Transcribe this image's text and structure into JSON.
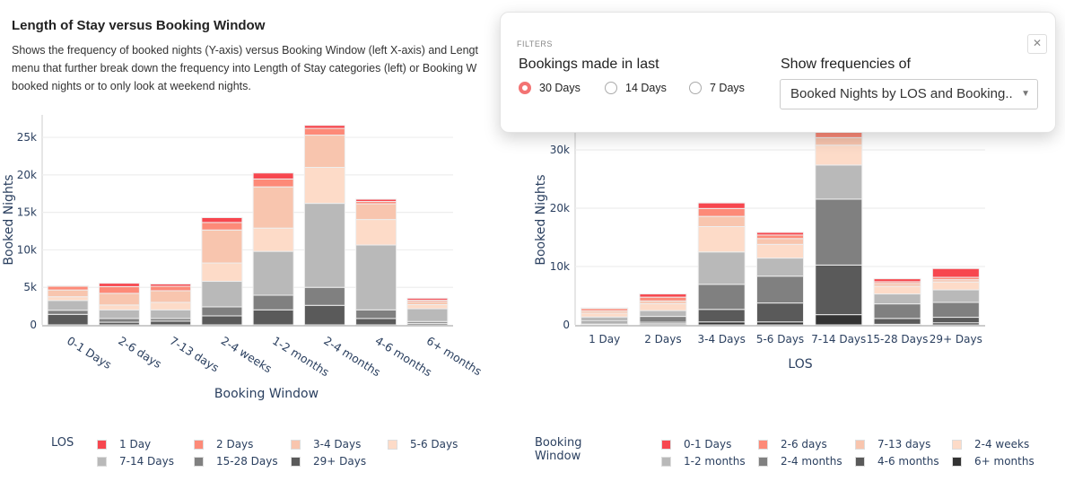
{
  "header": {
    "title": "Length of Stay versus Booking Window",
    "description_lines": [
      "Shows the frequency of booked nights (Y-axis) versus Booking Window (left X-axis) and Lengt",
      "menu that further break down the frequency into Length of Stay categories (left) or Booking W",
      "booked nights or to only look at weekend nights."
    ]
  },
  "filters": {
    "title": "FILTERS",
    "close_icon": "close-icon",
    "bookings_label": "Bookings made in last",
    "options": [
      "30 Days",
      "14 Days",
      "7 Days"
    ],
    "selected": "30 Days",
    "frequency_label": "Show frequencies of",
    "frequency_value": "Booked Nights by LOS and Booking..",
    "accent": "#f37373"
  },
  "chart_data": [
    {
      "type": "bar",
      "stacked": true,
      "title": "",
      "xlabel": "Booking Window",
      "ylabel": "Booked Nights",
      "ylim": [
        0,
        28000
      ],
      "yticks": [
        0,
        5000,
        10000,
        15000,
        20000,
        25000
      ],
      "ytick_labels": [
        "0",
        "5k",
        "10k",
        "15k",
        "20k",
        "25k"
      ],
      "grid": true,
      "legend_title": "LOS",
      "legend_position": "bottom",
      "categories": [
        "0-1 Days",
        "2-6 days",
        "7-13 days",
        "2-4 weeks",
        "1-2 months",
        "2-4 months",
        "4-6 months",
        "6+ months"
      ],
      "series": [
        {
          "name": "29+ Days",
          "color": "#5a5a5a",
          "values": [
            1400,
            350,
            500,
            1200,
            2000,
            2600,
            850,
            200
          ]
        },
        {
          "name": "15-28 Days",
          "color": "#808080",
          "values": [
            550,
            500,
            350,
            1200,
            1950,
            2400,
            1150,
            250
          ]
        },
        {
          "name": "7-14 Days",
          "color": "#b9b9b9",
          "values": [
            1300,
            1150,
            1150,
            3400,
            5850,
            11200,
            8650,
            1700
          ]
        },
        {
          "name": "5-6 Days",
          "color": "#fddbc8",
          "values": [
            500,
            650,
            1000,
            2450,
            3100,
            4800,
            3400,
            550
          ]
        },
        {
          "name": "3-4 Days",
          "color": "#f8c5ae",
          "values": [
            900,
            1550,
            1550,
            4400,
            5500,
            4300,
            2100,
            400
          ]
        },
        {
          "name": "2 Days",
          "color": "#fd8a78",
          "values": [
            500,
            900,
            600,
            1000,
            1050,
            900,
            300,
            200
          ]
        },
        {
          "name": "1 Day",
          "color": "#f7474f",
          "values": [
            50,
            450,
            300,
            650,
            800,
            400,
            300,
            250
          ]
        }
      ]
    },
    {
      "type": "bar",
      "stacked": true,
      "title": "",
      "xlabel": "LOS",
      "ylabel": "Booked Nights",
      "ylim": [
        0,
        36000
      ],
      "yticks": [
        0,
        10000,
        20000,
        30000
      ],
      "ytick_labels": [
        "0",
        "10k",
        "20k",
        "30k"
      ],
      "grid": true,
      "legend_title": "Booking Window",
      "legend_position": "bottom",
      "categories": [
        "1 Day",
        "2 Days",
        "3-4 Days",
        "5-6 Days",
        "7-14 Days",
        "15-28 Days",
        "29+ Days"
      ],
      "series": [
        {
          "name": "6+ months",
          "color": "#333333",
          "values": [
            100,
            200,
            500,
            500,
            1750,
            100,
            350
          ]
        },
        {
          "name": "4-6 months",
          "color": "#5a5a5a",
          "values": [
            200,
            250,
            2150,
            3250,
            8500,
            1000,
            950
          ]
        },
        {
          "name": "2-4 months",
          "color": "#808080",
          "values": [
            350,
            1000,
            4300,
            4600,
            11300,
            2500,
            2550
          ]
        },
        {
          "name": "1-2 months",
          "color": "#b9b9b9",
          "values": [
            700,
            1000,
            5550,
            3100,
            5850,
            1700,
            2150
          ]
        },
        {
          "name": "2-4 weeks",
          "color": "#fddbc8",
          "values": [
            650,
            1200,
            4350,
            2350,
            3400,
            1300,
            1350
          ]
        },
        {
          "name": "7-13 days",
          "color": "#f8c5ae",
          "values": [
            400,
            450,
            1750,
            1000,
            1300,
            500,
            400
          ]
        },
        {
          "name": "2-6 days",
          "color": "#fd8a78",
          "values": [
            400,
            650,
            1350,
            600,
            1200,
            300,
            400
          ]
        },
        {
          "name": "0-1 Days",
          "color": "#f7474f",
          "values": [
            100,
            550,
            950,
            450,
            1500,
            500,
            1500
          ]
        }
      ]
    }
  ]
}
